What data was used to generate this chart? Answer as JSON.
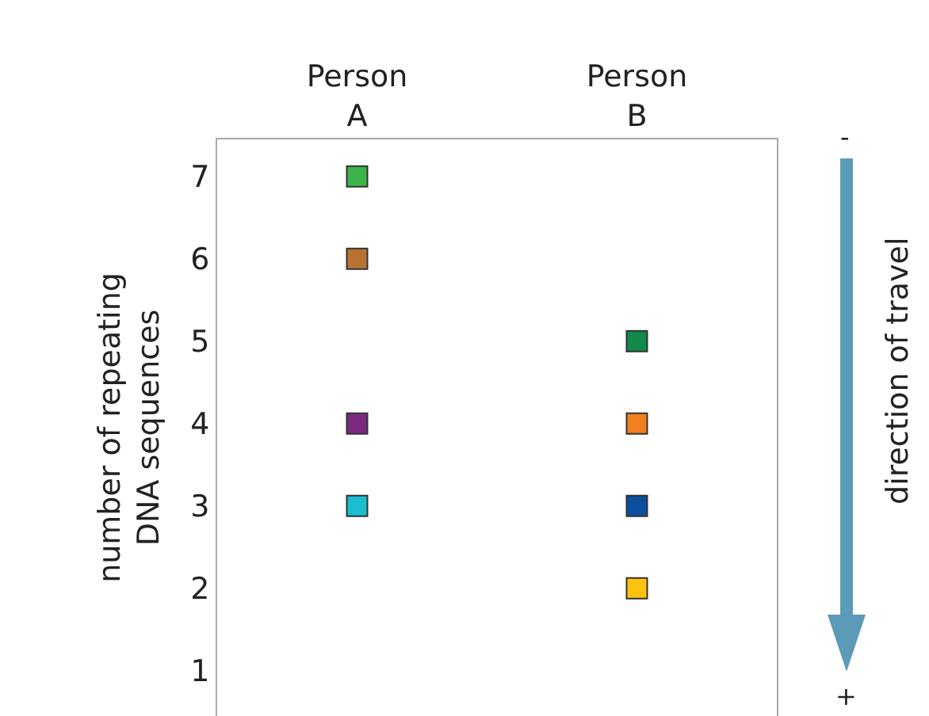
{
  "chart_data": {
    "type": "scatter",
    "ylabel": "number of repeating\nDNA sequences",
    "categories": [
      "Person A",
      "Person B"
    ],
    "series": [
      {
        "x": [
          "Person A",
          "Person A",
          "Person A",
          "Person A",
          "Person B",
          "Person B",
          "Person B",
          "Person B"
        ],
        "values": [
          7,
          6,
          4,
          3,
          5,
          4,
          3,
          2
        ],
        "colors": [
          "#3cb44a",
          "#b87333",
          "#7b2a80",
          "#19bfd0",
          "#118a4a",
          "#f08020",
          "#0a4fa0",
          "#ffc20e"
        ]
      }
    ],
    "ylim": [
      0.45,
      7.45
    ],
    "yticks": [
      1,
      2,
      3,
      4,
      5,
      6,
      7
    ],
    "grid": false,
    "marker": "square",
    "annotations": [
      "-",
      "+",
      "direction of travel"
    ]
  }
}
